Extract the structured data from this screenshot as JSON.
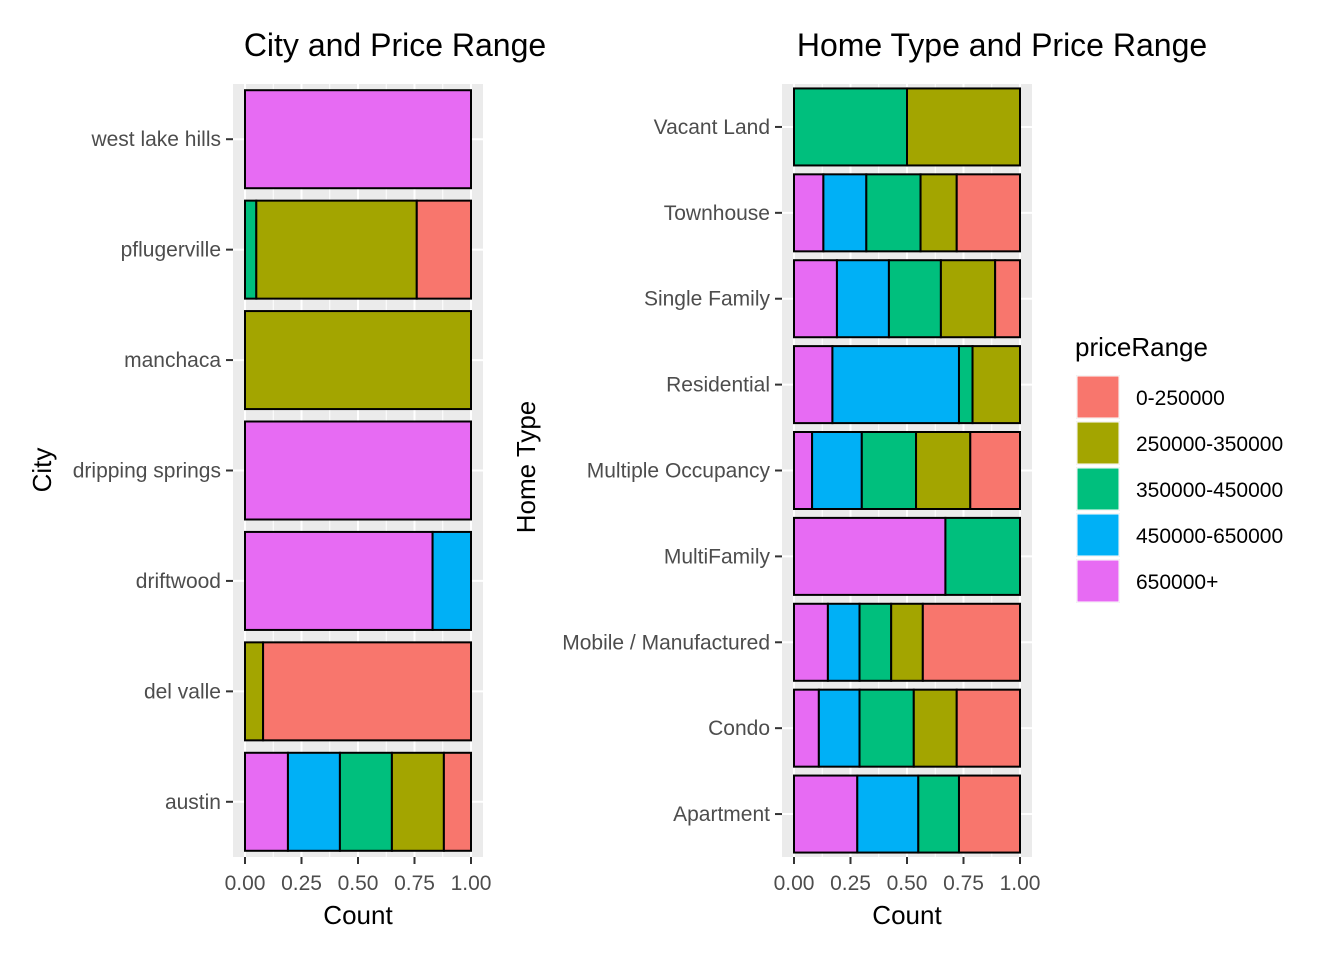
{
  "chart_data": [
    {
      "type": "bar",
      "orientation": "horizontal",
      "stacked": "fill",
      "title": "City and Price Range",
      "xlabel": "Count",
      "ylabel": "City",
      "xlim": [
        0,
        1
      ],
      "x_ticks": [
        "0.00",
        "0.25",
        "0.50",
        "0.75",
        "1.00"
      ],
      "x_tick_values": [
        0,
        0.25,
        0.5,
        0.75,
        1
      ],
      "categories": [
        "austin",
        "del valle",
        "driftwood",
        "dripping springs",
        "manchaca",
        "pflugerville",
        "west lake hills"
      ],
      "series": [
        {
          "name": "650000+",
          "values": [
            0.19,
            0,
            0.83,
            1,
            0,
            0,
            1
          ]
        },
        {
          "name": "450000-650000",
          "values": [
            0.23,
            0,
            0.17,
            0,
            0,
            0,
            0
          ]
        },
        {
          "name": "350000-450000",
          "values": [
            0.23,
            0,
            0,
            0,
            0,
            0.05,
            0
          ]
        },
        {
          "name": "250000-350000",
          "values": [
            0.23,
            0.08,
            0,
            0,
            1,
            0.71,
            0
          ]
        },
        {
          "name": "0-250000",
          "values": [
            0.12,
            0.92,
            0,
            0,
            0,
            0.24,
            0
          ]
        }
      ],
      "grid": true
    },
    {
      "type": "bar",
      "orientation": "horizontal",
      "stacked": "fill",
      "title": "Home Type and Price Range",
      "xlabel": "Count",
      "ylabel": "Home Type",
      "xlim": [
        0,
        1
      ],
      "x_ticks": [
        "0.00",
        "0.25",
        "0.50",
        "0.75",
        "1.00"
      ],
      "x_tick_values": [
        0,
        0.25,
        0.5,
        0.75,
        1
      ],
      "categories": [
        "Apartment",
        "Condo",
        "Mobile / Manufactured",
        "MultiFamily",
        "Multiple Occupancy",
        "Residential",
        "Single Family",
        "Townhouse",
        "Vacant Land"
      ],
      "series": [
        {
          "name": "650000+",
          "values": [
            0.28,
            0.11,
            0.15,
            0.67,
            0.08,
            0.17,
            0.19,
            0.13,
            0
          ]
        },
        {
          "name": "450000-650000",
          "values": [
            0.27,
            0.18,
            0.14,
            0,
            0.22,
            0.56,
            0.23,
            0.19,
            0
          ]
        },
        {
          "name": "350000-450000",
          "values": [
            0.18,
            0.24,
            0.14,
            0.33,
            0.24,
            0.06,
            0.23,
            0.24,
            0.5
          ]
        },
        {
          "name": "250000-350000",
          "values": [
            0,
            0.19,
            0.14,
            0,
            0.24,
            0.21,
            0.24,
            0.16,
            0.5
          ]
        },
        {
          "name": "0-250000",
          "values": [
            0.27,
            0.28,
            0.43,
            0,
            0.22,
            0,
            0.11,
            0.28,
            0
          ]
        }
      ],
      "grid": true
    }
  ],
  "legend": {
    "title": "priceRange",
    "placement": "right",
    "items": [
      {
        "label": "0-250000",
        "color": "#F8766D"
      },
      {
        "label": "250000-350000",
        "color": "#A3A500"
      },
      {
        "label": "350000-450000",
        "color": "#00BF7D"
      },
      {
        "label": "450000-650000",
        "color": "#00B0F6"
      },
      {
        "label": "650000+",
        "color": "#E76BF3"
      }
    ]
  },
  "colors": {
    "650000+": "#E76BF3",
    "450000-650000": "#00B0F6",
    "350000-450000": "#00BF7D",
    "250000-350000": "#A3A500",
    "0-250000": "#F8766D",
    "panel_background": "#EBEBEB",
    "grid_line": "#FFFFFF",
    "bar_outline": "#000000"
  }
}
